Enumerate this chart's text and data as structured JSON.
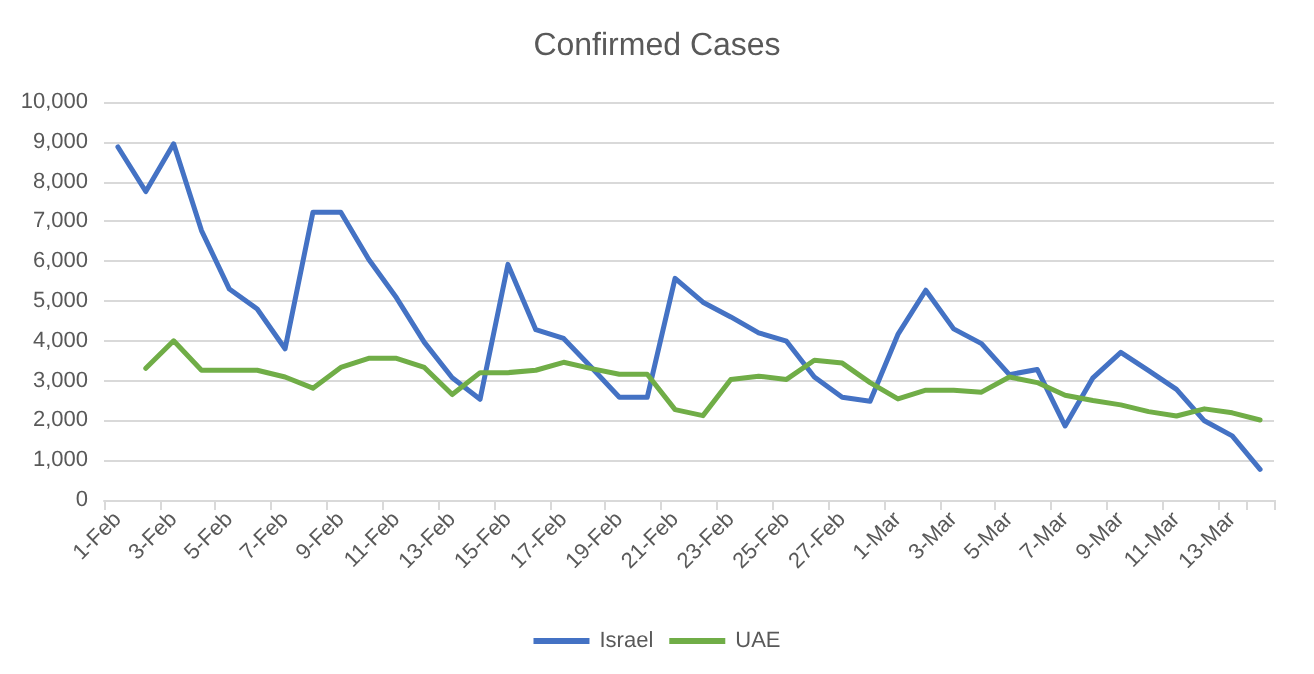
{
  "chart_data": {
    "type": "line",
    "title": "Confirmed Cases",
    "categories": [
      "1-Feb",
      null,
      "3-Feb",
      null,
      "5-Feb",
      null,
      "7-Feb",
      null,
      "9-Feb",
      null,
      "11-Feb",
      null,
      "13-Feb",
      null,
      "15-Feb",
      null,
      "17-Feb",
      null,
      "19-Feb",
      null,
      "21-Feb",
      null,
      "23-Feb",
      null,
      "25-Feb",
      null,
      "27-Feb",
      null,
      "1-Mar",
      null,
      "3-Mar",
      null,
      "5-Mar",
      null,
      "7-Mar",
      null,
      "9-Mar",
      null,
      "11-Mar",
      null,
      "13-Mar",
      null
    ],
    "series": [
      {
        "name": "Israel",
        "color": "#4472c4",
        "values": [
          8870,
          7750,
          8950,
          6770,
          5300,
          4800,
          3800,
          7230,
          7230,
          6050,
          5080,
          3960,
          3070,
          2530,
          5920,
          4280,
          4060,
          3330,
          2580,
          2580,
          5570,
          4970,
          4600,
          4200,
          3990,
          3090,
          2580,
          2480,
          4160,
          5270,
          4300,
          3930,
          3150,
          3280,
          1860,
          3070,
          3710,
          3250,
          2780,
          1990,
          1610,
          770
        ]
      },
      {
        "name": "UAE",
        "color": "#70ad47",
        "values": [
          null,
          3310,
          4000,
          3260,
          3260,
          3260,
          3090,
          2810,
          3330,
          3560,
          3560,
          3330,
          2650,
          3200,
          3200,
          3260,
          3460,
          3300,
          3160,
          3160,
          2270,
          2120,
          3030,
          3110,
          3030,
          3510,
          3440,
          2950,
          2540,
          2760,
          2760,
          2710,
          3090,
          2950,
          2630,
          2500,
          2390,
          2220,
          2110,
          2290,
          2190,
          2010
        ]
      }
    ],
    "ylim": [
      0,
      10000
    ],
    "yticks": [
      0,
      {
        "value": 1000,
        "label": "1,000"
      },
      {
        "value": 2000,
        "label": "2,000"
      },
      {
        "value": 3000,
        "label": "3,000"
      },
      {
        "value": 4000,
        "label": "4,000"
      },
      {
        "value": 5000,
        "label": "5,000"
      },
      {
        "value": 6000,
        "label": "6,000"
      },
      {
        "value": 7000,
        "label": "7,000"
      },
      {
        "value": 8000,
        "label": "8,000"
      },
      {
        "value": 9000,
        "label": "9,000"
      },
      {
        "value": 10000,
        "label": "10,000"
      }
    ],
    "grid": "y",
    "legend": "bottom",
    "marker": "none",
    "line_style": "solid"
  }
}
